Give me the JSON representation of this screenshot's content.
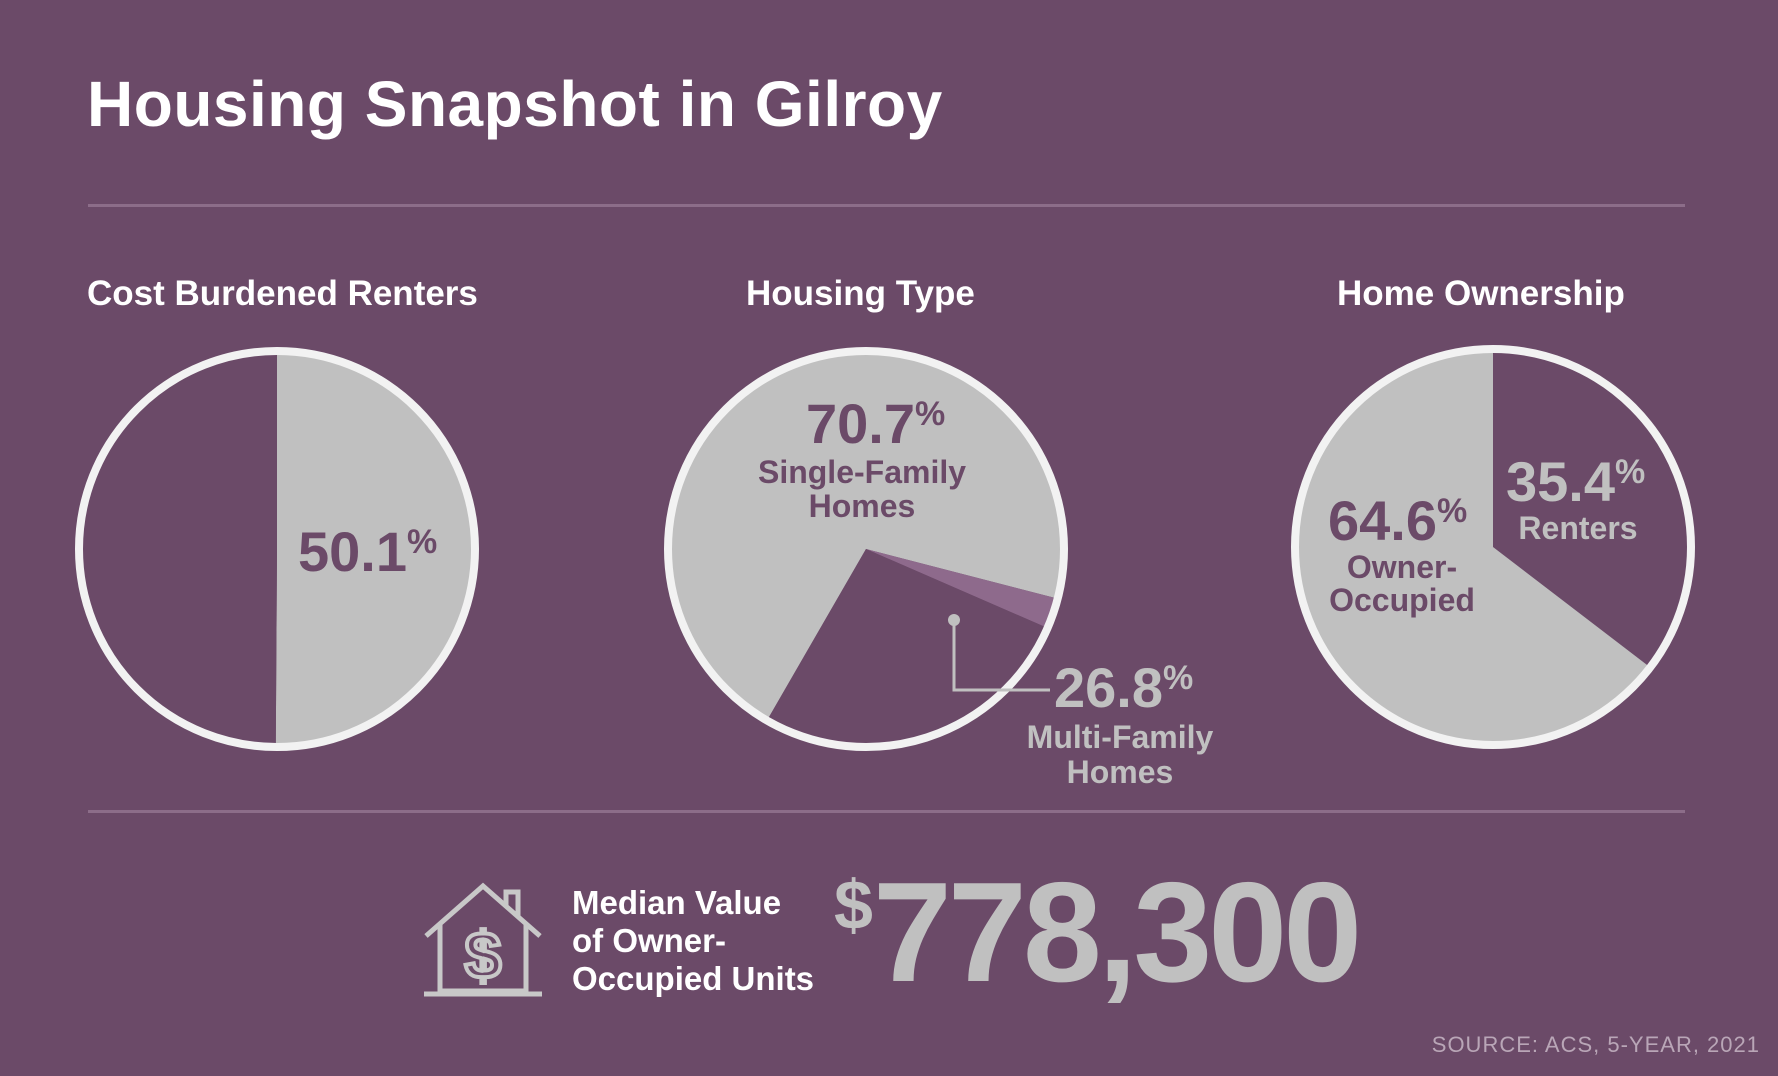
{
  "title": "Housing Snapshot in Gilroy",
  "colors": {
    "background": "#6b4a68",
    "slice_light": "#c0c0c0",
    "slice_dark": "#6b4a68",
    "slice_accent": "#8e6a8c",
    "ring": "#f2f2f2",
    "label_dark": "#6b4a68",
    "label_light": "#c0c0c0"
  },
  "chart_data": [
    {
      "type": "pie",
      "title": "Cost Burdened Renters",
      "slices": [
        {
          "label": "",
          "value": 50.1,
          "display": "50.1",
          "color": "light",
          "shown": true
        },
        {
          "label": "",
          "value": 49.9,
          "display": "",
          "color": "dark",
          "shown": false
        }
      ]
    },
    {
      "type": "pie",
      "title": "Housing Type",
      "slices": [
        {
          "label": "Single-Family Homes",
          "value": 70.7,
          "display": "70.7",
          "color": "light",
          "shown": true
        },
        {
          "label": "",
          "value": 2.5,
          "display": "",
          "color": "accent",
          "shown": false
        },
        {
          "label": "Multi-Family Homes",
          "value": 26.8,
          "display": "26.8",
          "color": "dark",
          "shown": true
        }
      ]
    },
    {
      "type": "pie",
      "title": "Home Ownership",
      "slices": [
        {
          "label": "Renters",
          "value": 35.4,
          "display": "35.4",
          "color": "dark",
          "shown": true
        },
        {
          "label": "Owner-Occupied",
          "value": 64.6,
          "display": "64.6",
          "color": "light",
          "shown": true
        }
      ]
    }
  ],
  "labels": {
    "pct_sign": "%",
    "cost_pct": "50.1",
    "single_pct": "70.7",
    "single_line1": "Single-Family",
    "single_line2": "Homes",
    "multi_pct": "26.8",
    "multi_line1": "Multi-Family",
    "multi_line2": "Homes",
    "owner_pct": "64.6",
    "owner_line1": "Owner-",
    "owner_line2": "Occupied",
    "renter_pct": "35.4",
    "renter_line1": "Renters"
  },
  "median": {
    "label_line1": "Median Value",
    "label_line2": "of Owner-",
    "label_line3": "Occupied Units",
    "currency": "$",
    "amount": "778,300",
    "icon": "house-dollar-icon"
  },
  "source": "SOURCE: ACS, 5-YEAR, 2021"
}
